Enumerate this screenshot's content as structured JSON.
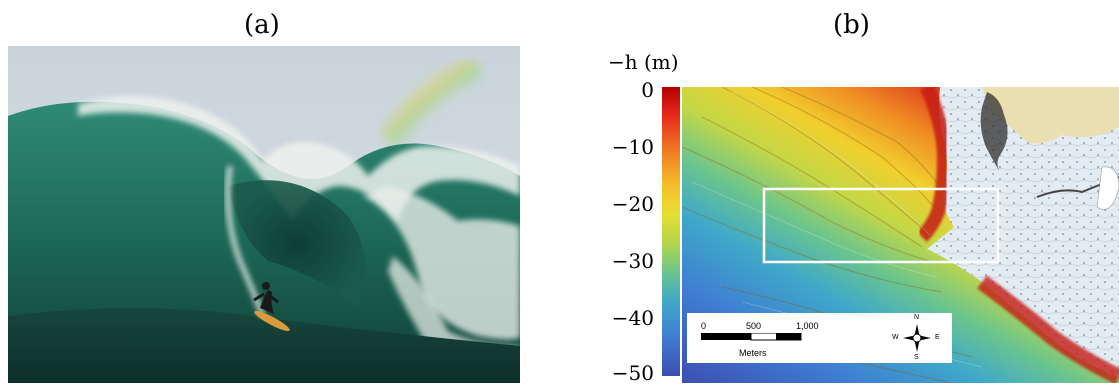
{
  "figure": {
    "panel_a_label": "(a)",
    "panel_b_label": "(b)"
  },
  "colorbar": {
    "title": "−h (m)",
    "ticks": [
      "0",
      "−10",
      "−20",
      "−30",
      "−40",
      "−50"
    ],
    "tick_values": [
      0,
      -10,
      -20,
      -30,
      -40,
      -50
    ],
    "range": [
      -50,
      0
    ]
  },
  "scale_bar": {
    "labels": [
      "0",
      "500",
      "1,000"
    ],
    "units": "Meters"
  },
  "compass": {
    "north": "N",
    "south": "S",
    "east": "E",
    "west": "W"
  },
  "colors": {
    "shallow": "#b30000",
    "mid": "#e6df31",
    "deep": "#3d4fb0",
    "land": "#e9dfb0",
    "chart_water": "#dfe8f2"
  }
}
